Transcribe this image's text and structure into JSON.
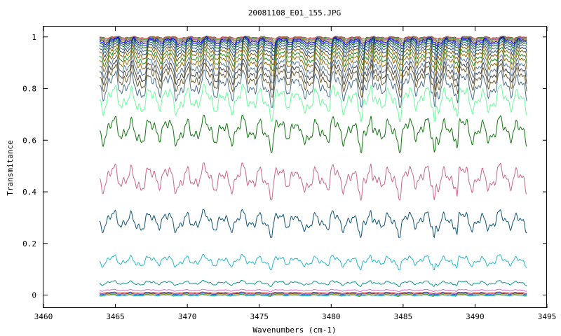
{
  "chart_data": {
    "type": "line",
    "title": "20081108_E01_155.JPG",
    "xlabel": "Wavenumbers (cm-1)",
    "ylabel": "Transmitance",
    "xlim": [
      3460,
      3495
    ],
    "ylim": [
      -0.05,
      1.04
    ],
    "x_range": [
      3463.9,
      3493.6
    ],
    "x_ticks": [
      3460,
      3465,
      3470,
      3475,
      3480,
      3485,
      3490,
      3495
    ],
    "x_tick_labels": [
      "3460",
      "3465",
      "3470",
      "3475",
      "3480",
      "3485",
      "3490",
      "3495"
    ],
    "y_ticks": [
      0,
      0.2,
      0.4,
      0.6,
      0.8,
      1
    ],
    "y_tick_labels": [
      "0",
      "0.2",
      "0.4",
      "0.6",
      "0.8",
      "1"
    ],
    "grid": false,
    "legend": "none",
    "series": [
      {
        "baseline": 1.0,
        "amplitude": 0.005,
        "color": "#cc3333"
      },
      {
        "baseline": 0.998,
        "amplitude": 0.008,
        "color": "#33aa33"
      },
      {
        "baseline": 0.996,
        "amplitude": 0.01,
        "color": "#aa55aa"
      },
      {
        "baseline": 0.993,
        "amplitude": 0.012,
        "color": "#888800"
      },
      {
        "baseline": 0.99,
        "amplitude": 0.015,
        "color": "#0000cc"
      },
      {
        "baseline": 0.985,
        "amplitude": 0.018,
        "color": "#2222ff"
      },
      {
        "baseline": 0.98,
        "amplitude": 0.022,
        "color": "#006600"
      },
      {
        "baseline": 0.972,
        "amplitude": 0.026,
        "color": "#336699"
      },
      {
        "baseline": 0.962,
        "amplitude": 0.03,
        "color": "#224466"
      },
      {
        "baseline": 0.95,
        "amplitude": 0.034,
        "color": "#885500"
      },
      {
        "baseline": 0.935,
        "amplitude": 0.038,
        "color": "#228822"
      },
      {
        "baseline": 0.92,
        "amplitude": 0.042,
        "color": "#996600"
      },
      {
        "baseline": 0.9,
        "amplitude": 0.046,
        "color": "#557799"
      },
      {
        "baseline": 0.88,
        "amplitude": 0.05,
        "color": "#444444"
      },
      {
        "baseline": 0.86,
        "amplitude": 0.055,
        "color": "#6b5a2a"
      },
      {
        "baseline": 0.83,
        "amplitude": 0.06,
        "color": "#4a6f8f"
      },
      {
        "baseline": 0.775,
        "amplitude": 0.06,
        "color": "#66ff99"
      },
      {
        "baseline": 0.655,
        "amplitude": 0.06,
        "color": "#117711"
      },
      {
        "baseline": 0.47,
        "amplitude": 0.06,
        "color": "#cc6688"
      },
      {
        "baseline": 0.3,
        "amplitude": 0.045,
        "color": "#115577"
      },
      {
        "baseline": 0.14,
        "amplitude": 0.025,
        "color": "#22bbcc"
      },
      {
        "baseline": 0.05,
        "amplitude": 0.01,
        "color": "#119988"
      },
      {
        "baseline": 0.02,
        "amplitude": 0.004,
        "color": "#dd66cc"
      },
      {
        "baseline": 0.01,
        "amplitude": 0.003,
        "color": "#aa2222"
      },
      {
        "baseline": 0.006,
        "amplitude": 0.003,
        "color": "#2244cc"
      },
      {
        "baseline": 0.002,
        "amplitude": 0.003,
        "color": "#999900"
      },
      {
        "baseline": 0.0,
        "amplitude": 0.003,
        "color": "#00aaaa"
      }
    ]
  }
}
